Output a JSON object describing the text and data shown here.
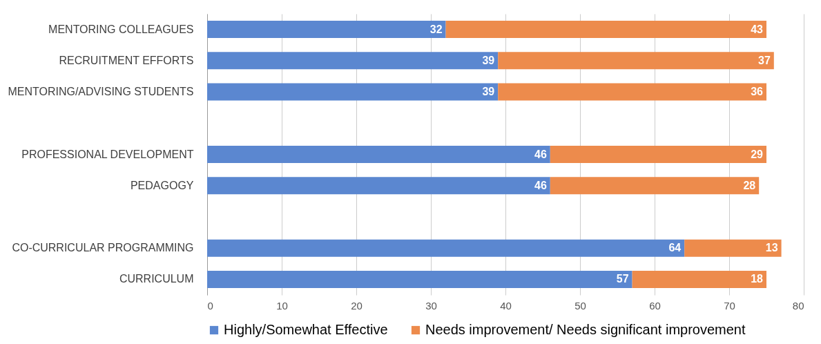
{
  "chart_data": {
    "type": "bar",
    "orientation": "horizontal",
    "stacked": true,
    "data_labels": true,
    "grid": "x",
    "legend": "bottom",
    "categories": [
      "MENTORING COLLEAGUES",
      "RECRUITMENT EFFORTS",
      "MENTORING/ADVISING STUDENTS",
      null,
      "PROFESSIONAL DEVELOPMENT",
      "PEDAGOGY",
      null,
      "CO-CURRICULAR PROGRAMMING",
      "CURRICULUM"
    ],
    "xlim": [
      0,
      80
    ],
    "xticks": [
      0,
      10,
      20,
      30,
      40,
      50,
      60,
      70,
      80
    ],
    "series": [
      {
        "name": "Highly/Somewhat Effective",
        "color": "#5b87d0",
        "values": [
          32,
          39,
          39,
          null,
          46,
          46,
          null,
          64,
          57
        ]
      },
      {
        "name": "Needs improvement/ Needs significant improvement",
        "color": "#ed8b4c",
        "values": [
          43,
          37,
          36,
          null,
          29,
          28,
          null,
          13,
          18
        ]
      }
    ]
  }
}
